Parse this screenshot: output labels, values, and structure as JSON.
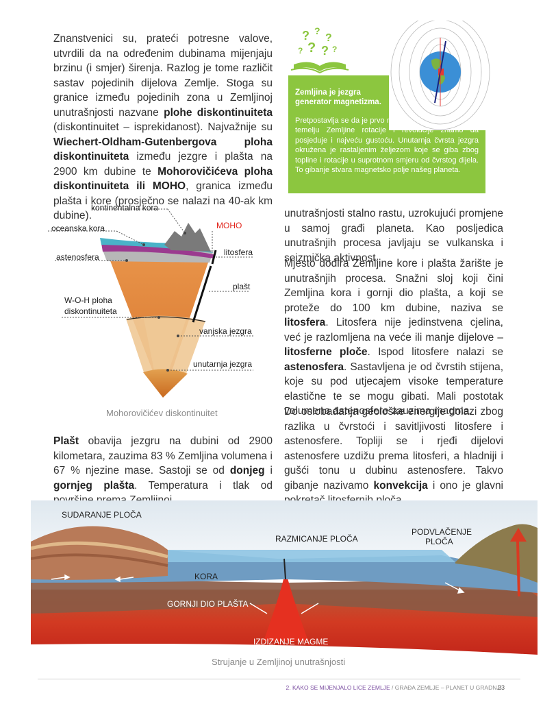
{
  "para1": {
    "t1": "Znanstvenici su, prateći potresne valove, utvrdili da na određenim dubinama mijenjaju brzinu (i smjer) širenja. Razlog je tome različit sastav pojedinih dijelova Zemlje. Stoga su granice između pojedinih zona u Zemljinoj unutrašnjosti nazvane",
    "b1": "plohe diskontinuiteta",
    "t2": "(diskontinuitet – isprekidanost). Najvažnije su",
    "b2": "Wiechert-Oldham-Gutenbergova ploha diskontinuiteta",
    "t3": "između jezgre i plašta na 2900 km dubine te",
    "b3": "Mohorovičićeva ploha diskontinuiteta ili MOHO",
    "t4": ", granica između plašta i kore (prosječno se nalazi na 40-ak km dubine)."
  },
  "green_box": {
    "title": "Zemljina je jezgra generator magnetizma.",
    "text": "Pretpostavlja se da je prvo nastala Zemljina jezgra. Na temelju Zemljine rotacije i revolucije znamo da posjeduje i najveću gustoću. Unutarnja čvrsta jezgra okružena je rastaljenim željezom koje se giba zbog topline i rotacije u suprotnom smjeru od čvrstog dijela. To gibanje stvara magnetsko polje našeg planeta."
  },
  "wedge": {
    "labels": {
      "kontinentalna": "kontinentalna kora",
      "oceanska": "oceanska kora",
      "moho": "MOHO",
      "astenosfera": "astenosfera",
      "litosfera": "litosfera",
      "plast": "plašt",
      "woh1": "W-O-H ploha",
      "woh2": "diskontinuiteta",
      "vanjska": "vanjska jezgra",
      "unutarnja": "unutarnja jezgra"
    },
    "caption": "Mohorovičićev diskontinuitet"
  },
  "para2": {
    "b1": "Plašt",
    "t1": "obavija jezgru na dubini od 2900 kilometara, zauzima 83 % Zemljina volumena i 67 % njezine mase. Sastoji se od",
    "b2": "donjeg",
    "t2": "i",
    "b3": "gornjeg plašta",
    "t3": ". Temperatura i tlak od površine prema Zemljinoj"
  },
  "para3": {
    "t1": "unutrašnjosti stalno rastu, uzrokujući promjene u samoj građi planeta. Kao posljedica unutrašnjih procesa javljaju se vulkanska i seizmička aktivnost."
  },
  "para4": {
    "t1": "Mjesto dodira Zemljine kore i plašta žarište je unutrašnjih procesa. Snažni sloj koji čini Zemljina kora i gornji dio plašta, a koji se proteže do 100 km dubine, naziva se",
    "b1": "litosfera",
    "t2": ". Litosfera nije jedinstvena cjelina, već je razlomljena na veće ili manje dijelove –",
    "b2": "litosferne ploče",
    "t3": ". Ispod litosfere nalazi se",
    "b3": "astenosfera",
    "t4": ". Sastavljena je od čvrstih stijena, koje su pod utjecajem visoke temperature elastične te se mogu gibati. Mali postotak volumena astenosfere zauzima magma."
  },
  "para5": {
    "t1": "Do oslobađanja geološke energije dolazi zbog razlika u čvrstoći i savitljivosti litosfere i astenosfere. Topliji se i rjeđi dijelovi astenosfere uzdižu prema litosferi, a hladniji i gušći tonu u dubinu astenosfere. Takvo gibanje nazivamo",
    "b1": "konvekcija",
    "t2": "i ono je glavni pokretač litosfernih ploča."
  },
  "plates": {
    "sudaranje": "SUDARANJE PLOČA",
    "razmicanje": "RAZMICANJE PLOČA",
    "podvlacenje1": "PODVLAČENJE",
    "podvlacenje2": "PLOČA",
    "kora": "KORA",
    "gornji": "GORNJI DIO PLAŠTA",
    "izdizanje": "IZDIZANJE MAGME",
    "caption": "Strujanje u Zemljinoj unutrašnjosti"
  },
  "footer": {
    "chapter": "2. KAKO SE MIJENJALO LICE ZEMLJE",
    "sep": " / ",
    "section": "GRAĐA ZEMLJE – PLANET U GRADNJI",
    "page": "23"
  },
  "colors": {
    "green": "#8cc63f",
    "footer_purple": "#7a4da0",
    "moho_red": "#e2231a"
  }
}
